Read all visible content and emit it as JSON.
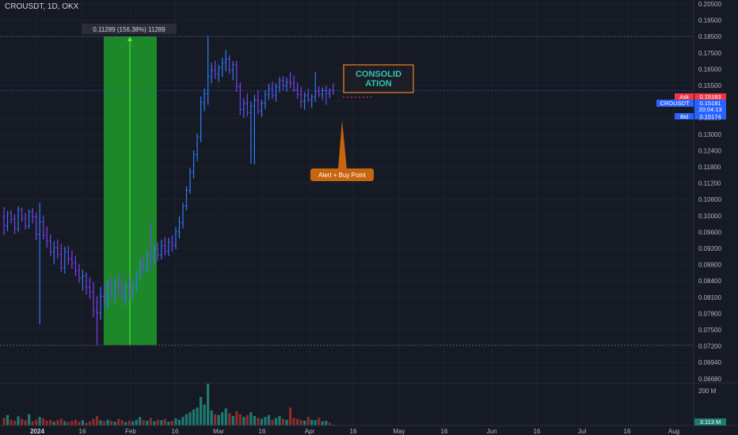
{
  "header": {
    "symbol_line": "CROUSDT, 1D, OKX"
  },
  "measure_label": "0.11289 (156.38%) 11289",
  "annotations": {
    "consolidation_box": [
      "CONSOLID",
      "ATION"
    ],
    "callout_label": "Alert + Buy Point"
  },
  "price_tags": {
    "ask_label": "Ask",
    "ask_value": "0.15183",
    "symbol_label": "CROUSDT",
    "last_value": "0.15181",
    "countdown": "20:04:13",
    "bid_label": "Bid",
    "bid_value": "0.15174"
  },
  "volume_tags": {
    "axis_label": "200 M",
    "current_volume": "3.113 M"
  },
  "colors": {
    "background": "#161a25",
    "bar_purple": "#7b3ff2",
    "bar_blue": "#2f7cf6",
    "measure_fill": "#1f9c2a",
    "measure_line": "#4cf03a",
    "consolidation_text": "#2ec4b6",
    "consolidation_border": "#f5821f",
    "callout": "#c8650f",
    "vol_up": "#1f7b72",
    "vol_down": "#8c2c2c",
    "ask_tag": "#f23645",
    "last_tag": "#2962ff"
  },
  "chart_data": {
    "type": "ohlc",
    "symbol": "CROUSDT",
    "timeframe": "1D",
    "exchange": "OKX",
    "y_axis_ticks": [
      "0.20500",
      "0.19500",
      "0.18500",
      "0.17500",
      "0.16500",
      "0.15500",
      "0.14500",
      "0.13500",
      "0.13000",
      "0.12400",
      "0.11800",
      "0.11200",
      "0.10600",
      "0.10000",
      "0.09600",
      "0.09200",
      "0.08800",
      "0.08400",
      "0.08100",
      "0.07800",
      "0.07500",
      "0.07200",
      "0.06940",
      "0.06680"
    ],
    "x_axis_ticks": [
      "2024",
      "16",
      "Feb",
      "16",
      "Mar",
      "16",
      "Apr",
      "16",
      "May",
      "16",
      "Jun",
      "16",
      "Jul",
      "16",
      "Aug"
    ],
    "last_price": 0.15181,
    "ask": 0.15183,
    "bid": 0.15174,
    "measured_move": {
      "low": 0.0722,
      "high": 0.1851,
      "change": 0.11289,
      "percent": 156.38
    },
    "ohlc": [
      [
        0.0998,
        0.1032,
        0.0952,
        0.0976
      ],
      [
        0.0976,
        0.1018,
        0.0962,
        0.1009
      ],
      [
        0.1009,
        0.1021,
        0.0981,
        0.0992
      ],
      [
        0.0992,
        0.1006,
        0.0955,
        0.0968
      ],
      [
        0.0968,
        0.1035,
        0.096,
        0.1022
      ],
      [
        0.1022,
        0.103,
        0.0985,
        0.0993
      ],
      [
        0.0993,
        0.1011,
        0.0966,
        0.0975
      ],
      [
        0.0975,
        0.1024,
        0.0968,
        0.1014
      ],
      [
        0.1014,
        0.1029,
        0.0981,
        0.0997
      ],
      [
        0.0997,
        0.1012,
        0.094,
        0.0954
      ],
      [
        0.0954,
        0.1048,
        0.076,
        0.0985
      ],
      [
        0.0985,
        0.1001,
        0.0941,
        0.0953
      ],
      [
        0.0953,
        0.0974,
        0.0922,
        0.0938
      ],
      [
        0.0938,
        0.0955,
        0.0901,
        0.0912
      ],
      [
        0.0912,
        0.0938,
        0.0882,
        0.0921
      ],
      [
        0.0921,
        0.0942,
        0.0895,
        0.0906
      ],
      [
        0.0906,
        0.0931,
        0.0862,
        0.0873
      ],
      [
        0.0873,
        0.0924,
        0.0858,
        0.0912
      ],
      [
        0.0912,
        0.0926,
        0.088,
        0.0894
      ],
      [
        0.0894,
        0.0915,
        0.0869,
        0.0885
      ],
      [
        0.0885,
        0.0901,
        0.0852,
        0.0866
      ],
      [
        0.0866,
        0.0882,
        0.0836,
        0.0847
      ],
      [
        0.0847,
        0.0868,
        0.0822,
        0.0852
      ],
      [
        0.0852,
        0.0861,
        0.0815,
        0.0828
      ],
      [
        0.0828,
        0.0849,
        0.0807,
        0.0819
      ],
      [
        0.0819,
        0.0838,
        0.0773,
        0.0786
      ],
      [
        0.0786,
        0.0812,
        0.0722,
        0.0781
      ],
      [
        0.0781,
        0.0829,
        0.0768,
        0.0812
      ],
      [
        0.0812,
        0.0835,
        0.0791,
        0.0803
      ],
      [
        0.0803,
        0.0842,
        0.0789,
        0.0828
      ],
      [
        0.0828,
        0.0851,
        0.0806,
        0.0818
      ],
      [
        0.0818,
        0.0846,
        0.0799,
        0.0836
      ],
      [
        0.0836,
        0.0859,
        0.0812,
        0.0824
      ],
      [
        0.0824,
        0.0845,
        0.0802,
        0.0811
      ],
      [
        0.0811,
        0.0838,
        0.0794,
        0.0829
      ],
      [
        0.0829,
        0.0852,
        0.0808,
        0.0816
      ],
      [
        0.0816,
        0.0839,
        0.0801,
        0.0831
      ],
      [
        0.0831,
        0.0866,
        0.0819,
        0.0857
      ],
      [
        0.0857,
        0.0893,
        0.0842,
        0.0881
      ],
      [
        0.0881,
        0.0902,
        0.0859,
        0.0872
      ],
      [
        0.0872,
        0.0911,
        0.0862,
        0.0902
      ],
      [
        0.0902,
        0.0985,
        0.0868,
        0.0896
      ],
      [
        0.0896,
        0.0929,
        0.088,
        0.0918
      ],
      [
        0.0918,
        0.0935,
        0.0889,
        0.0904
      ],
      [
        0.0904,
        0.0941,
        0.0893,
        0.0927
      ],
      [
        0.0927,
        0.0948,
        0.0902,
        0.0913
      ],
      [
        0.0913,
        0.0946,
        0.0901,
        0.0935
      ],
      [
        0.0935,
        0.0952,
        0.0911,
        0.0928
      ],
      [
        0.0928,
        0.0972,
        0.0918,
        0.0961
      ],
      [
        0.0961,
        0.0998,
        0.0944,
        0.0983
      ],
      [
        0.0983,
        0.1048,
        0.0969,
        0.1036
      ],
      [
        0.1036,
        0.1108,
        0.1021,
        0.1094
      ],
      [
        0.1094,
        0.1176,
        0.1081,
        0.1162
      ],
      [
        0.1162,
        0.1241,
        0.1138,
        0.1225
      ],
      [
        0.1225,
        0.1302,
        0.1201,
        0.1289
      ],
      [
        0.1289,
        0.1482,
        0.1271,
        0.1445
      ],
      [
        0.1445,
        0.1531,
        0.1392,
        0.1498
      ],
      [
        0.1498,
        0.1851,
        0.1431,
        0.1605
      ],
      [
        0.1605,
        0.1688,
        0.1562,
        0.1641
      ],
      [
        0.1641,
        0.1702,
        0.1588,
        0.1619
      ],
      [
        0.1619,
        0.1676,
        0.1573,
        0.1658
      ],
      [
        0.1658,
        0.1721,
        0.1602,
        0.1689
      ],
      [
        0.1689,
        0.1768,
        0.1635,
        0.1712
      ],
      [
        0.1712,
        0.1735,
        0.1621,
        0.1644
      ],
      [
        0.1644,
        0.1698,
        0.1582,
        0.1676
      ],
      [
        0.1676,
        0.1702,
        0.1511,
        0.1542
      ],
      [
        0.1542,
        0.1569,
        0.1368,
        0.1402
      ],
      [
        0.1402,
        0.1471,
        0.1351,
        0.1438
      ],
      [
        0.1438,
        0.1501,
        0.1362,
        0.1384
      ],
      [
        0.1384,
        0.1451,
        0.1192,
        0.1423
      ],
      [
        0.1423,
        0.1492,
        0.1189,
        0.1461
      ],
      [
        0.1461,
        0.1519,
        0.1372,
        0.1394
      ],
      [
        0.1394,
        0.1462,
        0.1358,
        0.1441
      ],
      [
        0.1441,
        0.1522,
        0.1405,
        0.1493
      ],
      [
        0.1493,
        0.1561,
        0.1462,
        0.1532
      ],
      [
        0.1532,
        0.1573,
        0.1468,
        0.1488
      ],
      [
        0.1488,
        0.1562,
        0.1451,
        0.1541
      ],
      [
        0.1541,
        0.1602,
        0.1508,
        0.1579
      ],
      [
        0.1579,
        0.1608,
        0.1521,
        0.1548
      ],
      [
        0.1548,
        0.1598,
        0.1512,
        0.1571
      ],
      [
        0.1571,
        0.1632,
        0.1534,
        0.1562
      ],
      [
        0.1562,
        0.1611,
        0.1511,
        0.1524
      ],
      [
        0.1524,
        0.1568,
        0.1468,
        0.1495
      ],
      [
        0.1495,
        0.1541,
        0.1412,
        0.1452
      ],
      [
        0.1452,
        0.1508,
        0.1401,
        0.1487
      ],
      [
        0.1487,
        0.1529,
        0.1448,
        0.1463
      ],
      [
        0.1463,
        0.1498,
        0.1412,
        0.1478
      ],
      [
        0.1478,
        0.1631,
        0.1451,
        0.1512
      ],
      [
        0.1512,
        0.1545,
        0.1478,
        0.1495
      ],
      [
        0.1495,
        0.1538,
        0.1462,
        0.1518
      ],
      [
        0.1518,
        0.1549,
        0.1431,
        0.1502
      ],
      [
        0.1502,
        0.1532,
        0.1472,
        0.1519
      ],
      [
        0.1519,
        0.1563,
        0.1491,
        0.1518
      ]
    ],
    "volume_scale_M": 200,
    "volume": [
      40,
      55,
      30,
      25,
      48,
      35,
      28,
      60,
      22,
      30,
      45,
      38,
      25,
      30,
      20,
      28,
      35,
      22,
      18,
      25,
      30,
      20,
      28,
      15,
      22,
      35,
      50,
      28,
      22,
      30,
      25,
      20,
      35,
      28,
      18,
      25,
      22,
      30,
      45,
      28,
      25,
      40,
      22,
      30,
      28,
      35,
      20,
      25,
      38,
      30,
      45,
      60,
      70,
      85,
      95,
      150,
      110,
      220,
      80,
      60,
      55,
      70,
      90,
      65,
      50,
      75,
      60,
      45,
      55,
      70,
      50,
      40,
      35,
      45,
      55,
      30,
      40,
      50,
      35,
      30,
      95,
      40,
      35,
      30,
      25,
      45,
      30,
      28,
      40,
      22,
      25,
      15,
      3.113
    ],
    "volume_up": [
      false,
      true,
      false,
      false,
      true,
      false,
      false,
      true,
      false,
      false,
      true,
      false,
      false,
      false,
      true,
      false,
      false,
      true,
      false,
      false,
      false,
      false,
      true,
      false,
      false,
      false,
      false,
      true,
      false,
      true,
      false,
      true,
      false,
      false,
      true,
      false,
      true,
      true,
      true,
      false,
      true,
      false,
      true,
      false,
      true,
      false,
      true,
      false,
      true,
      true,
      true,
      true,
      true,
      true,
      true,
      true,
      true,
      true,
      true,
      false,
      true,
      true,
      true,
      false,
      true,
      false,
      false,
      true,
      false,
      true,
      true,
      false,
      true,
      true,
      true,
      false,
      true,
      true,
      false,
      true,
      false,
      false,
      false,
      false,
      true,
      false,
      true,
      true,
      false,
      true,
      true,
      false,
      true
    ]
  }
}
